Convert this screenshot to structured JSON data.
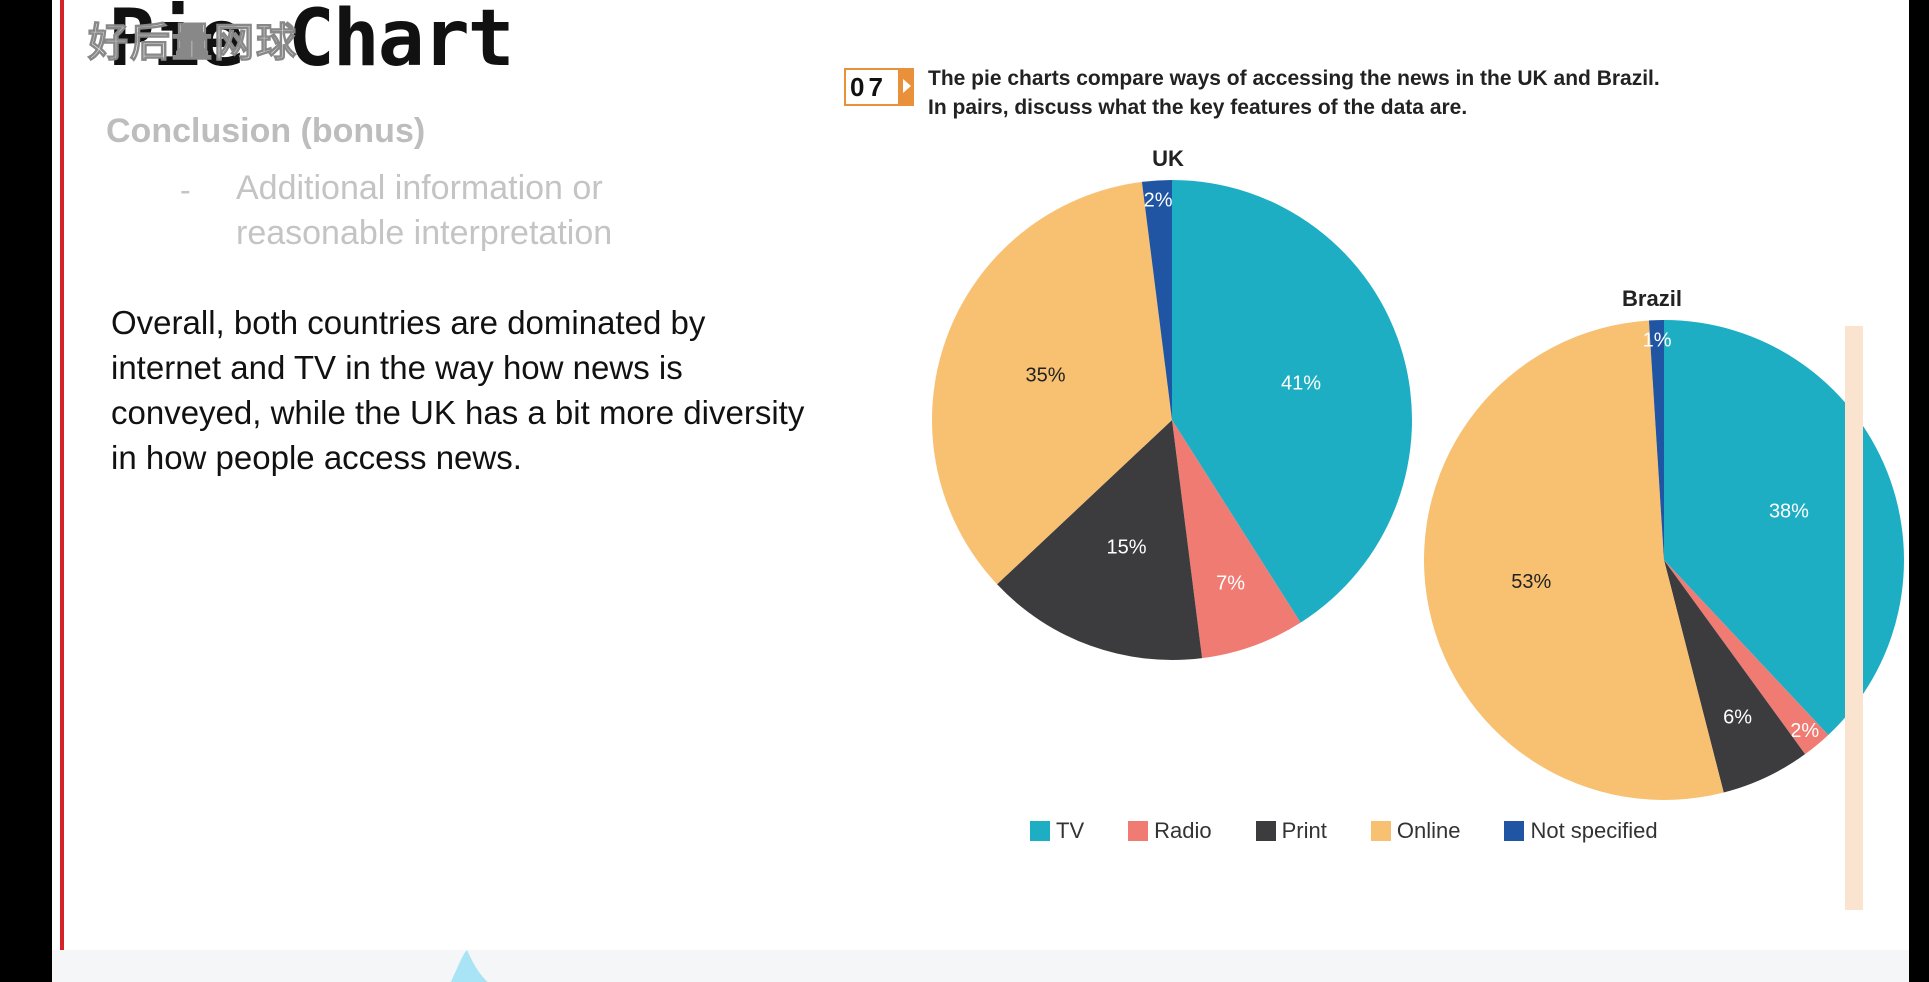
{
  "slide": {
    "title": "Pie Chart",
    "watermark": "好后量网球",
    "subhead": "Conclusion (bonus)",
    "bullet_dash": "-",
    "bullet_text": "Additional information or reasonable interpretation",
    "conclusion_text": "Overall, both countries are dominated by internet and TV in the way how news is conveyed, while the UK has a bit more diversity in how people access news."
  },
  "figure": {
    "badge": "07",
    "caption_line1": "The pie charts compare ways of accessing the news in the UK and Brazil.",
    "caption_line2": "In pairs, discuss what the key features of the data are."
  },
  "colors": {
    "TV": "#1eaec4",
    "Radio": "#ef7b73",
    "Print": "#3c3c3e",
    "Online": "#f8c172",
    "Not specified": "#1f55a3",
    "accent_red": "#d5232a",
    "badge_orange": "#e9913a"
  },
  "chart_data": [
    {
      "type": "pie",
      "title": "UK",
      "categories": [
        "TV",
        "Radio",
        "Print",
        "Online",
        "Not specified"
      ],
      "values": [
        41,
        7,
        15,
        35,
        2
      ],
      "labels": [
        "41%",
        "7%",
        "15%",
        "35%",
        "2%"
      ],
      "legend": "bottom"
    },
    {
      "type": "pie",
      "title": "Brazil",
      "categories": [
        "TV",
        "Radio",
        "Print",
        "Online",
        "Not specified"
      ],
      "values": [
        38,
        2,
        6,
        53,
        1
      ],
      "labels": [
        "38%",
        "2%",
        "6%",
        "53%",
        "1%"
      ],
      "legend": "bottom"
    }
  ],
  "legend": [
    "TV",
    "Radio",
    "Print",
    "Online",
    "Not specified"
  ]
}
